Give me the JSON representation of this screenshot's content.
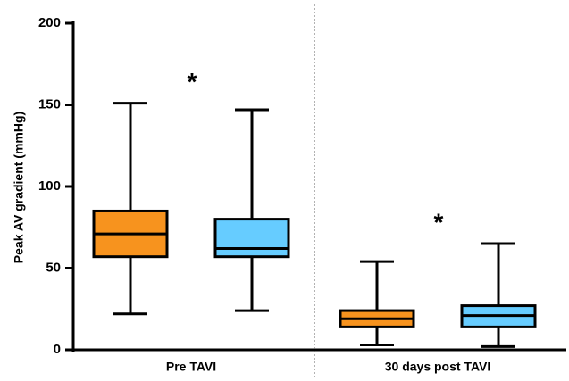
{
  "chart_data": {
    "type": "box",
    "y_label": "Peak AV gradient (mmHg)",
    "categories": [
      "Pre TAVI",
      "30 days post TAVI"
    ],
    "series": [
      {
        "color": "#f7931e",
        "values": [
          {
            "min": 22,
            "q1": 57,
            "median": 71,
            "q3": 85,
            "max": 151
          },
          {
            "min": 3,
            "q1": 14,
            "median": 19,
            "q3": 24,
            "max": 54
          }
        ]
      },
      {
        "color": "#66ccff",
        "values": [
          {
            "min": 24,
            "q1": 57,
            "median": 62,
            "q3": 80,
            "max": 147
          },
          {
            "min": 2,
            "q1": 14,
            "median": 21,
            "q3": 27,
            "max": 65
          }
        ]
      }
    ],
    "ylim": [
      0,
      200
    ],
    "yticks": [
      0,
      50,
      100,
      150,
      200
    ],
    "annotations": [
      {
        "text": "*",
        "category": 0
      },
      {
        "text": "*",
        "category": 1
      }
    ]
  }
}
